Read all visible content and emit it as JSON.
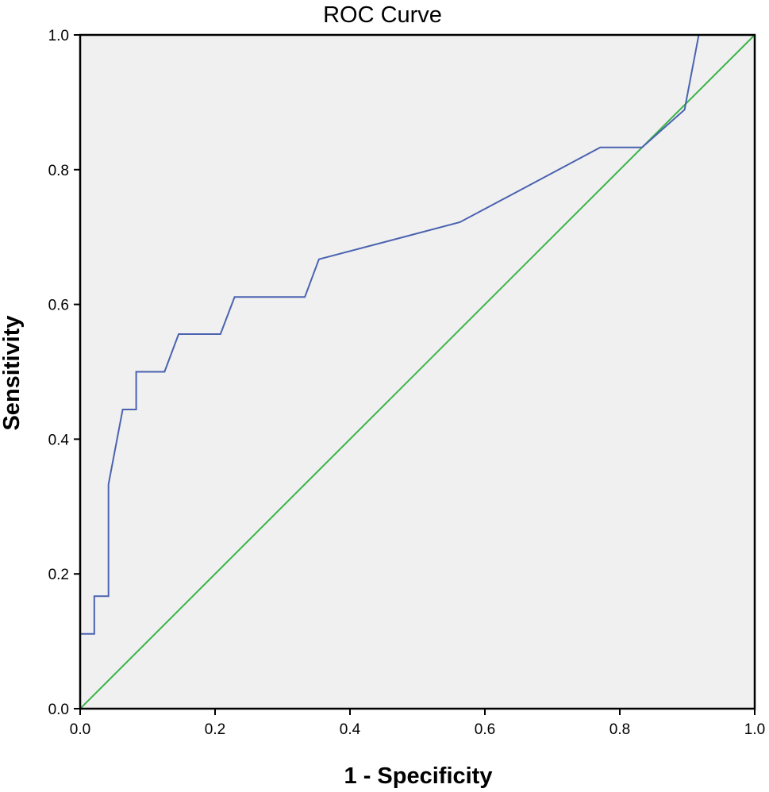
{
  "chart_data": {
    "type": "line",
    "title": "ROC Curve",
    "xlabel": "1 - Specificity",
    "ylabel": "Sensitivity",
    "xlim": [
      0,
      1
    ],
    "ylim": [
      0,
      1
    ],
    "x_ticks": [
      "0.0",
      "0.2",
      "0.4",
      "0.6",
      "0.8",
      "1.0"
    ],
    "y_ticks": [
      "0.0",
      "0.2",
      "0.4",
      "0.6",
      "0.8",
      "1.0"
    ],
    "grid": false,
    "legend": "none",
    "series": [
      {
        "color": "#4a62b0",
        "points": [
          [
            0.0,
            0.0
          ],
          [
            0.0,
            0.111
          ],
          [
            0.021,
            0.111
          ],
          [
            0.021,
            0.167
          ],
          [
            0.042,
            0.167
          ],
          [
            0.042,
            0.333
          ],
          [
            0.063,
            0.444
          ],
          [
            0.083,
            0.444
          ],
          [
            0.083,
            0.5
          ],
          [
            0.125,
            0.5
          ],
          [
            0.146,
            0.556
          ],
          [
            0.208,
            0.556
          ],
          [
            0.229,
            0.611
          ],
          [
            0.333,
            0.611
          ],
          [
            0.354,
            0.667
          ],
          [
            0.563,
            0.722
          ],
          [
            0.771,
            0.833
          ],
          [
            0.833,
            0.833
          ],
          [
            0.896,
            0.889
          ],
          [
            0.917,
            1.0
          ],
          [
            1.0,
            1.0
          ]
        ]
      },
      {
        "color": "#3cb44b",
        "points": [
          [
            0.0,
            0.0
          ],
          [
            1.0,
            1.0
          ]
        ]
      }
    ],
    "plot_background": "#f0f0f0"
  }
}
